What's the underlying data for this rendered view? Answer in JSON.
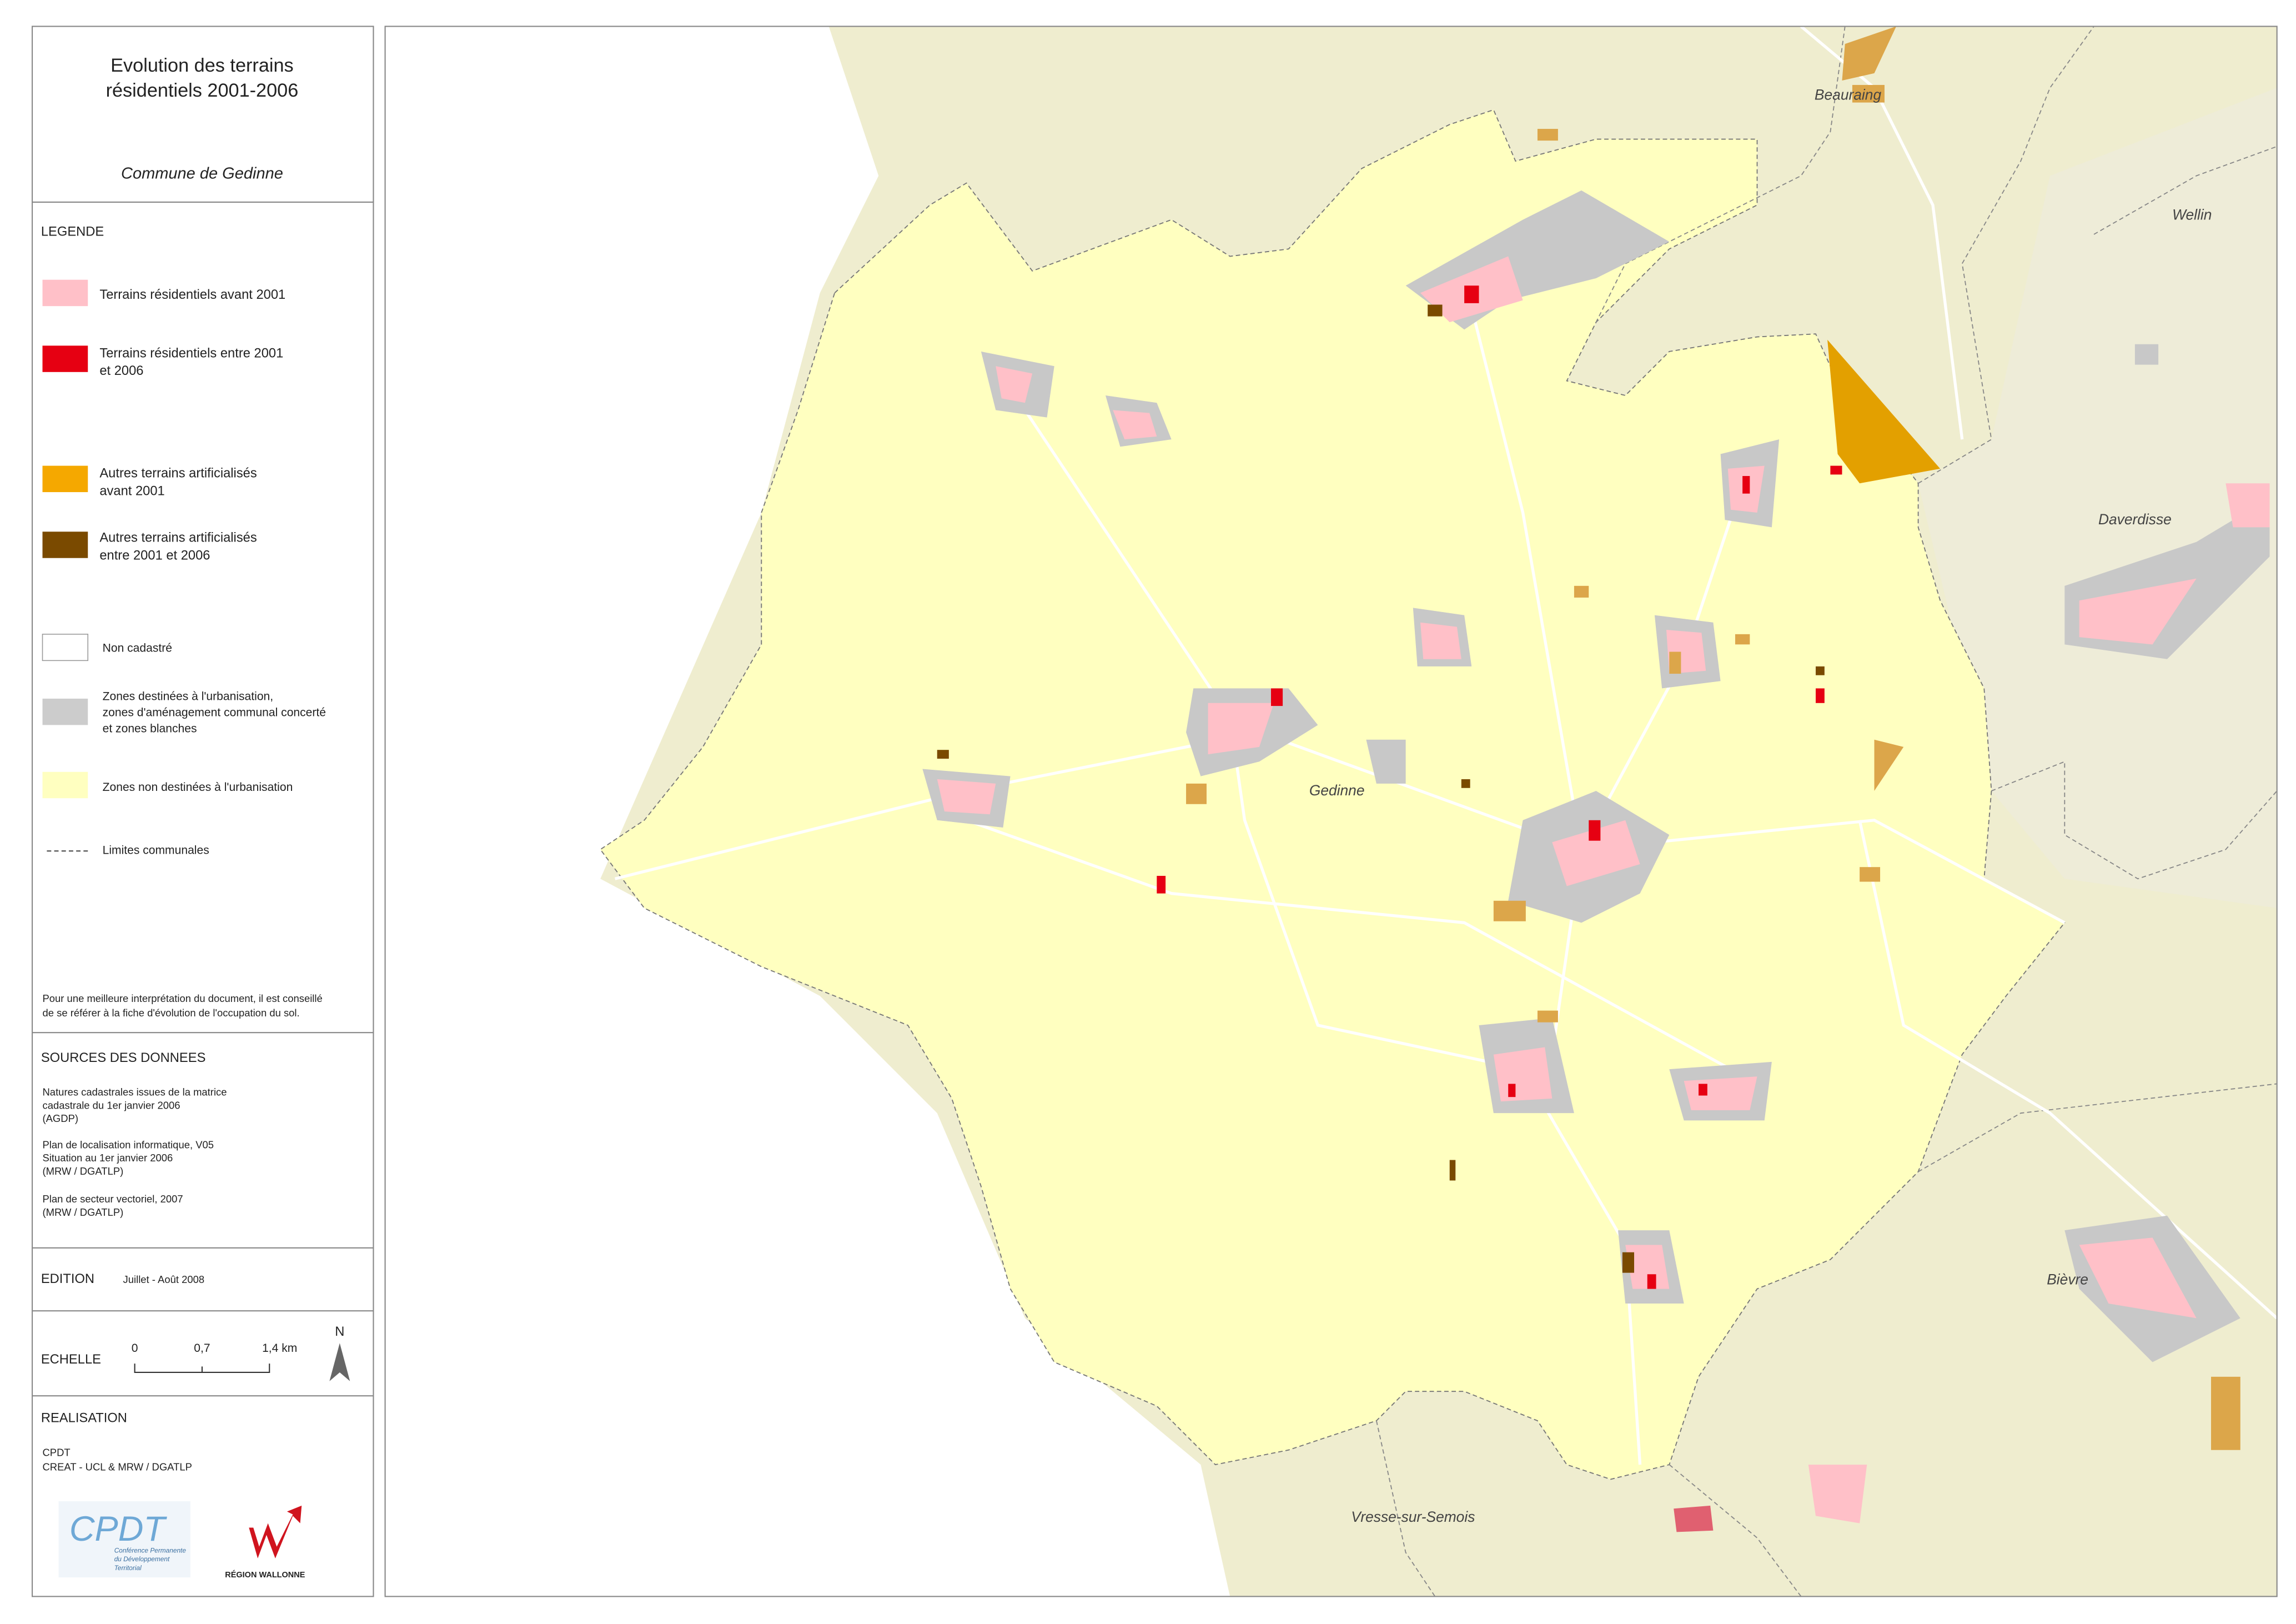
{
  "header": {
    "title": [
      "Evolution des terrains",
      "résidentiels 2001-2006"
    ],
    "subtitle": "Commune de Gedinne"
  },
  "legend": {
    "heading": "LEGENDE",
    "items": [
      {
        "label": [
          "Terrains résidentiels avant 2001"
        ],
        "color": "#ffc0c8"
      },
      {
        "label": [
          "Terrains résidentiels entre 2001",
          "et 2006"
        ],
        "color": "#e60012"
      },
      {
        "label": [
          "Autres terrains artificialisés",
          "avant 2001"
        ],
        "color": "#f5a800"
      },
      {
        "label": [
          "Autres terrains artificialisés",
          "entre 2001 et 2006"
        ],
        "color": "#7a4a00"
      },
      {
        "label": [
          "Non cadastré"
        ],
        "color": "#ffffff"
      },
      {
        "label": [
          "Zones destinées à l'urbanisation,",
          "zones d'aménagement communal concerté",
          "et zones blanches"
        ],
        "color": "#cccccc"
      },
      {
        "label": [
          "Zones non destinées à l'urbanisation"
        ],
        "color": "#ffffc0"
      },
      {
        "label": [
          "Limites communales"
        ]
      }
    ]
  },
  "note": [
    "Pour une meilleure interprétation du document, il est conseillé",
    "de se référer à la fiche d'évolution de l'occupation du sol."
  ],
  "sources": {
    "heading": "SOURCES DES DONNEES",
    "lines": [
      "Natures cadastrales issues de la matrice",
      "cadastrale du 1er janvier 2006",
      "(AGDP)",
      "Plan de localisation informatique, V05",
      "Situation au 1er janvier 2006",
      "(MRW / DGATLP)",
      "Plan de secteur vectoriel, 2007",
      "(MRW / DGATLP)"
    ]
  },
  "edition": {
    "heading": "EDITION",
    "value": "Juillet - Août 2008"
  },
  "scale": {
    "heading": "ECHELLE",
    "ticks": [
      "0",
      "0,7",
      "1,4 km"
    ],
    "north": "N"
  },
  "realisation": {
    "heading": "REALISATION",
    "lines": [
      "CPDT",
      "CREAT - UCL & MRW / DGATLP"
    ],
    "logo_cpdt": [
      "CPDT",
      "Conférence Permanente",
      "du Développement",
      "Territorial"
    ],
    "logo_rw": "RÉGION WALLONNE"
  },
  "map": {
    "labels": [
      "Beauraing",
      "Wellin",
      "Daverdisse",
      "Gedinne",
      "Bièvre",
      "Vresse-sur-Semois"
    ]
  }
}
